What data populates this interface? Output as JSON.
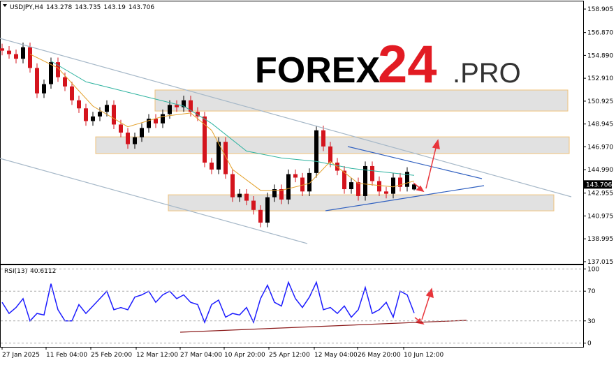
{
  "watermark": [
    "FOREX",
    "24",
    ".PRO"
  ],
  "chart_data": [
    {
      "type": "candlestick",
      "title": "USDJPY,H4",
      "open": [
        155.5,
        155.3,
        155.0,
        154.6,
        155.6,
        153.8,
        151.6,
        152.4,
        154.3,
        153.0,
        152.2,
        151.0,
        150.3,
        149.2,
        149.6,
        150.0,
        150.6,
        148.9,
        148.2,
        147.2,
        147.8,
        148.6,
        149.4,
        149.0,
        149.8,
        150.6,
        150.4,
        151.0,
        150.0,
        149.6,
        145.6,
        145.0,
        147.4,
        144.6,
        142.6,
        142.9,
        142.3,
        141.5,
        140.4,
        142.6,
        143.3,
        142.4,
        144.6,
        144.3,
        143.1,
        144.7,
        148.4,
        147.0,
        145.6,
        144.9,
        143.3,
        143.9,
        142.7,
        145.3,
        144.0,
        143.1,
        142.9,
        144.3,
        143.5,
        143.278
      ],
      "high": [
        155.9,
        155.7,
        155.4,
        156.0,
        156.0,
        154.2,
        152.8,
        154.7,
        154.7,
        153.4,
        152.6,
        151.4,
        150.7,
        150.0,
        150.4,
        151.0,
        151.0,
        149.3,
        148.6,
        148.2,
        149.0,
        149.8,
        149.8,
        150.2,
        151.0,
        151.0,
        151.4,
        151.4,
        150.4,
        150.0,
        146.0,
        147.8,
        147.8,
        145.0,
        143.3,
        143.3,
        142.7,
        141.9,
        143.0,
        143.7,
        143.7,
        145.0,
        145.0,
        144.7,
        145.1,
        148.8,
        148.8,
        147.4,
        146.0,
        145.3,
        144.3,
        144.3,
        145.7,
        145.7,
        144.4,
        143.5,
        144.7,
        144.7,
        145.2,
        143.735
      ],
      "low": [
        154.9,
        154.6,
        154.2,
        154.2,
        153.4,
        151.2,
        151.2,
        152.0,
        152.6,
        151.8,
        150.6,
        149.9,
        148.8,
        148.8,
        149.2,
        149.6,
        148.5,
        147.8,
        146.8,
        146.8,
        147.4,
        148.2,
        148.6,
        148.6,
        149.4,
        150.0,
        150.0,
        149.6,
        149.2,
        145.2,
        144.6,
        144.6,
        144.2,
        142.2,
        142.2,
        141.9,
        141.1,
        140.0,
        140.0,
        142.2,
        142.0,
        142.0,
        143.9,
        142.7,
        142.7,
        144.3,
        146.6,
        145.2,
        144.5,
        142.9,
        142.9,
        142.3,
        142.3,
        143.6,
        142.7,
        142.5,
        142.5,
        143.1,
        143.1,
        143.19
      ],
      "close": [
        155.3,
        155.0,
        154.6,
        155.6,
        153.8,
        151.6,
        152.4,
        154.3,
        153.0,
        152.2,
        151.0,
        150.3,
        149.2,
        149.6,
        150.0,
        150.6,
        148.9,
        148.2,
        147.2,
        147.8,
        148.6,
        149.4,
        149.0,
        149.8,
        150.6,
        150.4,
        151.0,
        150.0,
        149.6,
        145.6,
        145.0,
        147.4,
        144.6,
        142.6,
        142.9,
        142.3,
        141.5,
        140.4,
        142.6,
        143.3,
        142.4,
        144.6,
        144.3,
        143.1,
        144.7,
        148.4,
        147.0,
        145.6,
        144.9,
        143.3,
        143.9,
        142.7,
        145.3,
        144.0,
        143.1,
        142.9,
        144.3,
        143.5,
        144.8,
        143.706
      ],
      "up_color": "#000000",
      "down_color": "#d4141d",
      "series": [
        {
          "color": "#2fb3a0",
          "x": [
            7,
            12,
            20,
            26,
            30,
            35,
            40,
            45,
            50,
            59
          ],
          "values": [
            154.4,
            152.6,
            151.4,
            150.5,
            149,
            146.6,
            146,
            145.7,
            145.1,
            144.5
          ]
        },
        {
          "color": "#e3a02a",
          "x": [
            4,
            8,
            13,
            18,
            23,
            27,
            30,
            33,
            37,
            40,
            44,
            47,
            51,
            56,
            59
          ],
          "values": [
            155,
            153.8,
            150.5,
            148.7,
            149.6,
            149.9,
            148.4,
            145,
            143.2,
            143.2,
            143.8,
            145.7,
            143.8,
            143.5,
            144
          ]
        }
      ],
      "zones": [
        [
          151.89,
          150.07
        ],
        [
          147.83,
          146.38
        ],
        [
          142.81,
          141.42
        ]
      ],
      "xlim": [
        -0.3,
        83.2
      ],
      "xticks": [
        {
          "value": 0,
          "label": "27 Jan 2025"
        },
        {
          "value": 6.3,
          "label": "11 Feb 04:00"
        },
        {
          "value": 12.7,
          "label": "25 Feb 20:00"
        },
        {
          "value": 19.2,
          "label": "12 Mar 12:00"
        },
        {
          "value": 25.5,
          "label": "27 Mar 04:00"
        },
        {
          "value": 31.8,
          "label": "10 Apr 20:00"
        },
        {
          "value": 38.2,
          "label": "25 Apr 12:00"
        },
        {
          "value": 44.7,
          "label": "12 May 04:00"
        },
        {
          "value": 50.9,
          "label": "26 May 20:00"
        },
        {
          "value": 57.5,
          "label": "10 Jun 12:00"
        }
      ],
      "ylim": [
        136.83,
        159.57
      ],
      "yticks": [
        158.905,
        {
          "value": 156.87,
          "label": "156.870"
        },
        {
          "value": 154.89,
          "label": "154.890"
        },
        {
          "value": 152.91,
          "label": "152.910"
        },
        150.925,
        148.945,
        {
          "value": 146.97,
          "label": "146.970"
        },
        {
          "value": 144.99,
          "label": "144.990"
        },
        142.955,
        140.975,
        138.995,
        137.015
      ]
    },
    {
      "type": "line",
      "title": "RSI(13)",
      "color": "#1c1cff",
      "values": [
        55,
        40,
        48,
        60,
        30,
        40,
        38,
        80,
        45,
        30,
        30,
        52,
        40,
        50,
        60,
        70,
        45,
        48,
        45,
        62,
        65,
        70,
        55,
        65,
        70,
        60,
        65,
        55,
        52,
        28,
        52,
        58,
        35,
        40,
        38,
        48,
        28,
        60,
        78,
        55,
        50,
        82,
        60,
        48,
        62,
        82,
        45,
        48,
        40,
        50,
        35,
        45,
        75,
        40,
        45,
        55,
        35,
        70,
        65,
        40.6112
      ],
      "ylim": [
        -5,
        105
      ],
      "yticks": [
        100,
        70,
        30,
        0
      ]
    }
  ]
}
